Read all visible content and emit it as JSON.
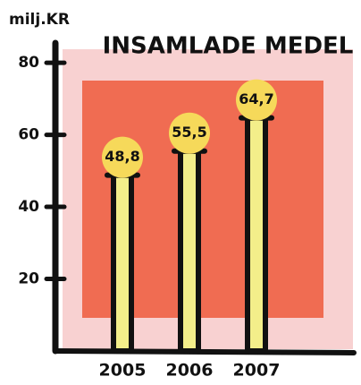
{
  "chart_data": {
    "type": "bar",
    "title": "INSAMLADE MEDEL",
    "y_label": "milj.KR",
    "categories": [
      "2005",
      "2006",
      "2007"
    ],
    "values": [
      48.8,
      55.5,
      64.7
    ],
    "value_labels": [
      "48,8",
      "55,5",
      "64,7"
    ],
    "color": "#f3ee8a",
    "label_color": "#f6d95a",
    "ylim": [
      0,
      85
    ],
    "yticks": [
      20,
      40,
      60,
      80
    ]
  }
}
